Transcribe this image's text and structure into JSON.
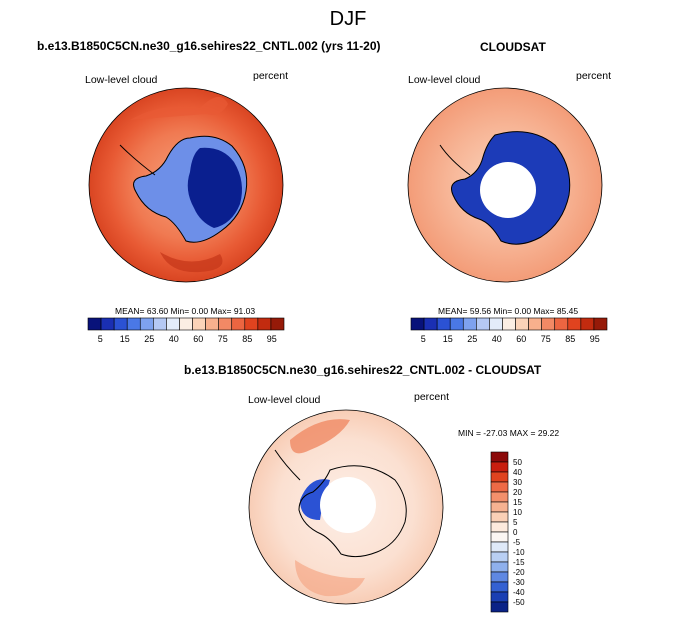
{
  "main_title": "DJF",
  "colors": {
    "map_land_dark": "#0a1f8f",
    "map_land_mid": "#2a56c9",
    "pole_mask": "#ffffff",
    "coast": "#000000"
  },
  "top_left": {
    "title": "b.e13.B1850C5CN.ne30_g16.sehires22_CNTL.002 (yrs 11-20)",
    "left_label": "Low-level cloud",
    "right_label": "percent",
    "stats": "MEAN=  63.60  Min=   0.00  Max=  91.03"
  },
  "top_right": {
    "title": "CLOUDSAT",
    "left_label": "Low-level cloud",
    "right_label": "percent",
    "stats": "MEAN=  59.56  Min=   0.00  Max=  85.45"
  },
  "bottom": {
    "title": "b.e13.B1850C5CN.ne30_g16.sehires22_CNTL.002 - CLOUDSAT",
    "left_label": "Low-level cloud",
    "right_label": "percent",
    "stats": "MIN = -27.03 MAX =  29.22"
  },
  "chart_data": [
    {
      "type": "heatmap",
      "title": "b.e13.B1850C5CN.ne30_g16.sehires22_CNTL.002 (yrs 11-20)",
      "variable": "Low-level cloud",
      "units": "percent",
      "mean": 63.6,
      "min": 0.0,
      "max": 91.03,
      "colorbar": {
        "tick_labels": [
          "5",
          "15",
          "25",
          "40",
          "60",
          "75",
          "85",
          "95"
        ],
        "colors": [
          "#08127a",
          "#1a2fb3",
          "#2b52d4",
          "#4a78e6",
          "#7ea2ef",
          "#b5c9f4",
          "#e3ecfa",
          "#fbeee3",
          "#fbd3b8",
          "#f8b08d",
          "#f28965",
          "#ec6541",
          "#e0431f",
          "#c22b0f",
          "#961a08"
        ]
      }
    },
    {
      "type": "heatmap",
      "title": "CLOUDSAT",
      "variable": "Low-level cloud",
      "units": "percent",
      "mean": 59.56,
      "min": 0.0,
      "max": 85.45,
      "colorbar": {
        "tick_labels": [
          "5",
          "15",
          "25",
          "40",
          "60",
          "75",
          "85",
          "95"
        ],
        "colors": [
          "#08127a",
          "#1a2fb3",
          "#2b52d4",
          "#4a78e6",
          "#7ea2ef",
          "#b5c9f4",
          "#e3ecfa",
          "#fbeee3",
          "#fbd3b8",
          "#f8b08d",
          "#f28965",
          "#ec6541",
          "#e0431f",
          "#c22b0f",
          "#961a08"
        ]
      }
    },
    {
      "type": "heatmap",
      "title": "b.e13.B1850C5CN.ne30_g16.sehires22_CNTL.002 - CLOUDSAT",
      "variable": "Low-level cloud",
      "units": "percent",
      "min": -27.03,
      "max": 29.22,
      "colorbar": {
        "tick_labels": [
          "50",
          "40",
          "30",
          "20",
          "15",
          "10",
          "5",
          "0",
          "-5",
          "-10",
          "-15",
          "-20",
          "-30",
          "-40",
          "-50"
        ],
        "colors": [
          "#8c0a0a",
          "#c81e0f",
          "#e0431f",
          "#ee6a46",
          "#f3906c",
          "#f7b291",
          "#fad0b6",
          "#fdeadd",
          "#fbf6f3",
          "#dfe9f8",
          "#b9cff3",
          "#8fb0ec",
          "#5f88e2",
          "#3461d2",
          "#1a3fb3",
          "#0a2286"
        ]
      }
    }
  ]
}
